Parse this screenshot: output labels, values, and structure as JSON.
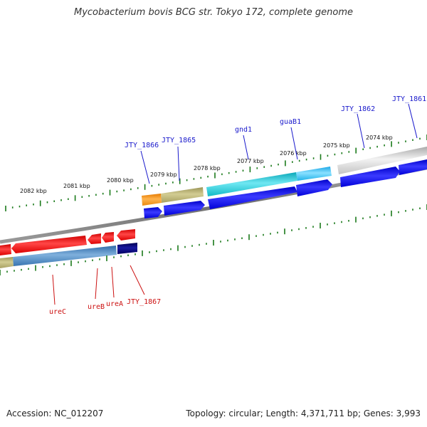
{
  "title": "Mycobacterium bovis BCG str. Tokyo 172, complete genome",
  "footer": {
    "accession": "Accession: NC_012207",
    "topology": "Topology: circular; Length: 4,371,711 bp; Genes: 3,993"
  },
  "colors": {
    "forward_label": "#1a1acc",
    "reverse_label": "#cc1111",
    "tick": "#1a7a1a",
    "backbone": "#808080"
  },
  "scale_labels": [
    "2082 kbp",
    "2081 kbp",
    "2080 kbp",
    "2079 kbp",
    "2078 kbp",
    "2077 kbp",
    "2076 kbp",
    "2075 kbp",
    "2074 kbp"
  ],
  "forward_genes": [
    {
      "label": "JTY_1866"
    },
    {
      "label": "JTY_1865"
    },
    {
      "label": "gnd1"
    },
    {
      "label": "guaB1"
    },
    {
      "label": "JTY_1862"
    },
    {
      "label": "JTY_1861"
    }
  ],
  "reverse_genes": [
    {
      "label": "ureC"
    },
    {
      "label": "ureB"
    },
    {
      "label": "ureA"
    },
    {
      "label": "JTY_1867"
    }
  ]
}
